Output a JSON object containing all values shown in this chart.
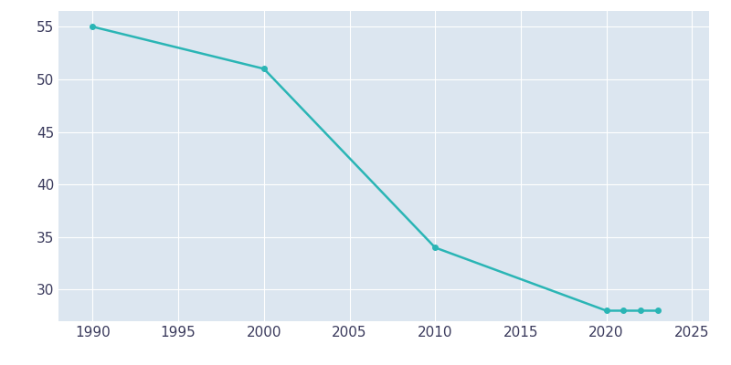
{
  "years": [
    1990,
    2000,
    2010,
    2020,
    2021,
    2022,
    2023
  ],
  "population": [
    55,
    51,
    34,
    28,
    28,
    28,
    28
  ],
  "line_color": "#2ab5b5",
  "marker_color": "#2ab5b5",
  "background_color": "#ffffff",
  "plot_bg_color": "#dce6f0",
  "grid_color": "#ffffff",
  "tick_label_color": "#3a3a5c",
  "xlim": [
    1988,
    2026
  ],
  "ylim": [
    27,
    56.5
  ],
  "yticks": [
    30,
    35,
    40,
    45,
    50,
    55
  ],
  "xticks": [
    1990,
    1995,
    2000,
    2005,
    2010,
    2015,
    2020,
    2025
  ],
  "linewidth": 1.8,
  "markersize": 4
}
